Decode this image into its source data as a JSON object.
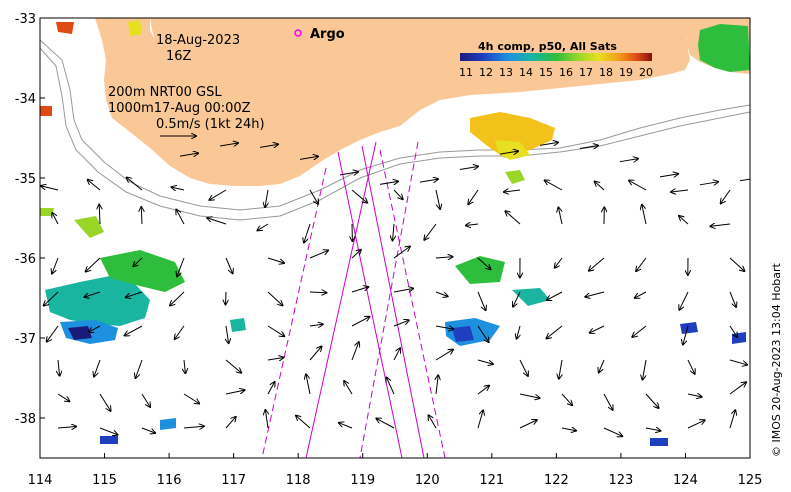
{
  "map": {
    "date": "18-Aug-2023",
    "hour": "16Z",
    "argo_label": "Argo",
    "info_lines": [
      "200m  NRT00 GSL",
      "1000m17-Aug 00:00Z",
      "0.5m/s (1kt 24h)"
    ],
    "credit": "© IMOS 20-Aug-2023 13:04 Hobart",
    "x_ticks": [
      "114",
      "115",
      "116",
      "117",
      "118",
      "119",
      "120",
      "121",
      "122",
      "123",
      "124",
      "125"
    ],
    "y_ticks": [
      "-33",
      "-34",
      "-35",
      "-36",
      "-37",
      "-38"
    ],
    "lon_range": [
      114,
      125
    ],
    "lat_range": [
      -38.5,
      -33
    ]
  },
  "colorbar": {
    "title": "4h comp, p50, All Sats",
    "ticks": [
      "11",
      "12",
      "13",
      "14",
      "15",
      "16",
      "17",
      "18",
      "19",
      "20"
    ]
  },
  "colors": {
    "land": "#f9c896",
    "argo": "#ff00ff",
    "track": "#cc00cc"
  }
}
